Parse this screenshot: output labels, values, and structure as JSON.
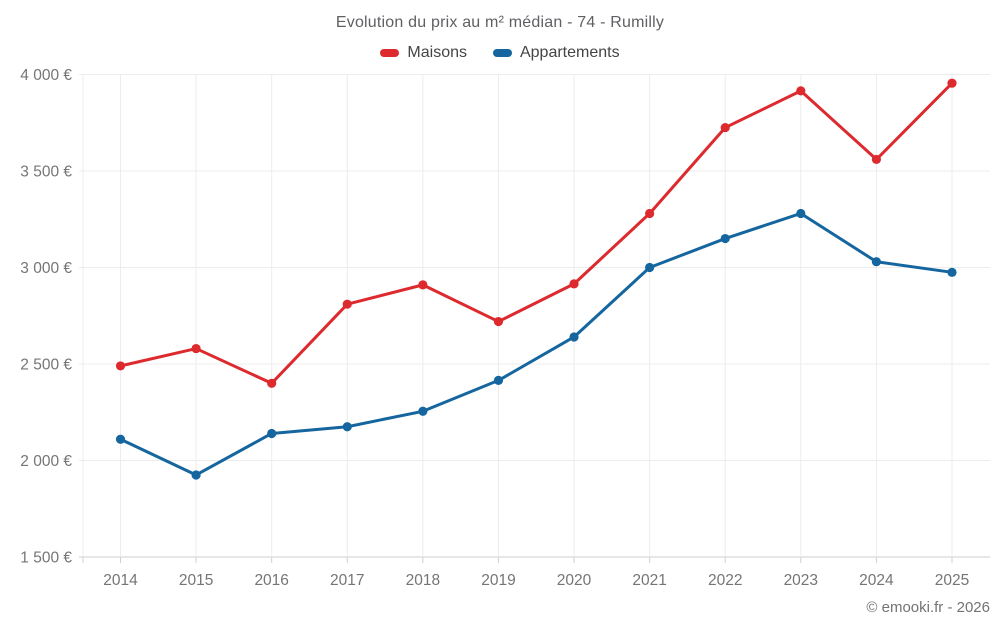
{
  "page": {
    "footer": "© emooki.fr - 2026"
  },
  "chart_data": {
    "type": "line",
    "title": "Evolution du prix au m² médian - 74 - Rumilly",
    "categories": [
      "2014",
      "2015",
      "2016",
      "2017",
      "2018",
      "2019",
      "2020",
      "2021",
      "2022",
      "2023",
      "2024",
      "2025"
    ],
    "series": [
      {
        "name": "Maisons",
        "color": "#dd2a2e",
        "values": [
          2490,
          2580,
          2400,
          2810,
          2910,
          2720,
          2915,
          3280,
          3725,
          3915,
          3560,
          3955
        ]
      },
      {
        "name": "Appartements",
        "color": "#15669f",
        "values": [
          2110,
          1925,
          2140,
          2175,
          2255,
          2415,
          2640,
          3000,
          3150,
          3280,
          3030,
          2975
        ]
      }
    ],
    "ylim": [
      1500,
      4000
    ],
    "yticks": [
      {
        "value": 1500,
        "label": "1 500 €"
      },
      {
        "value": 2000,
        "label": "2 000 €"
      },
      {
        "value": 2500,
        "label": "2 500 €"
      },
      {
        "value": 3000,
        "label": "3 000 €"
      },
      {
        "value": 3500,
        "label": "3 500 €"
      },
      {
        "value": 4000,
        "label": "4 000 €"
      }
    ],
    "xlabel": "",
    "ylabel": "",
    "grid": true,
    "legend_position": "top"
  }
}
